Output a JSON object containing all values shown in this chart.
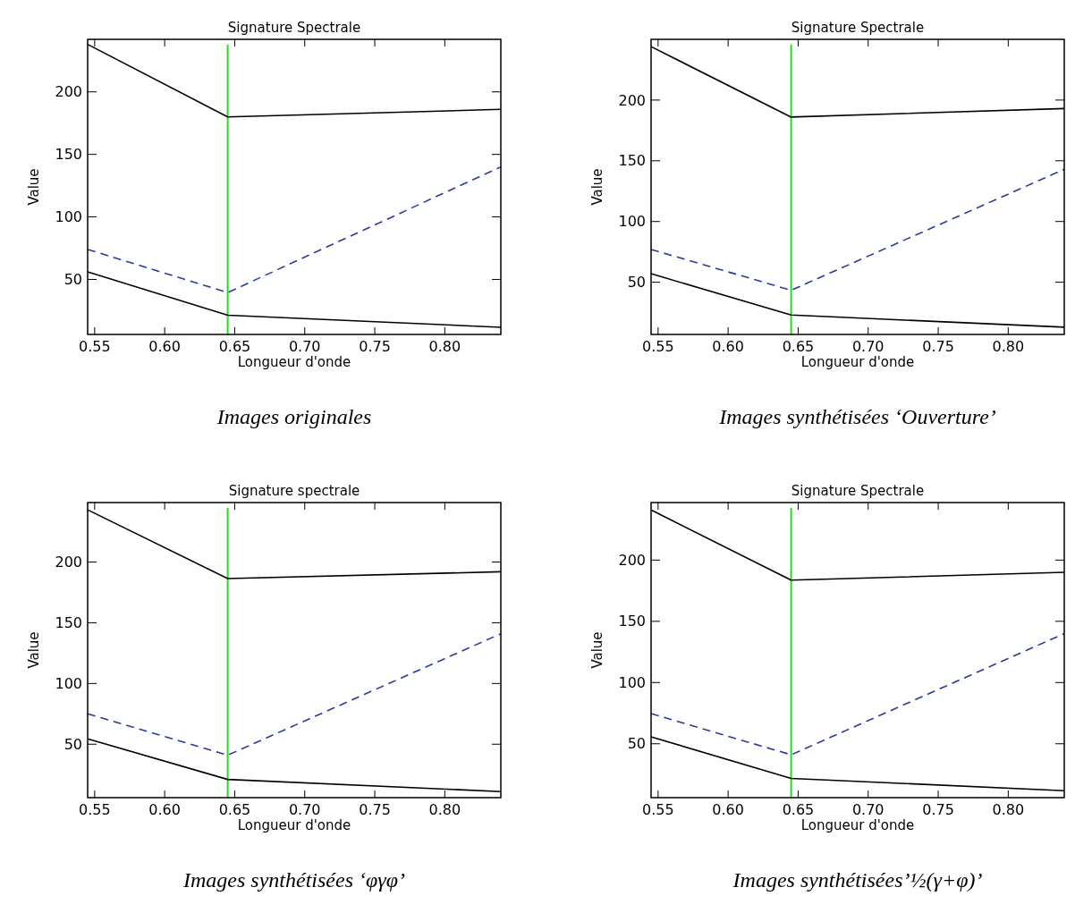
{
  "chart_data": [
    {
      "type": "line",
      "title": "Signature Spectrale",
      "xlabel": "Longueur d'onde",
      "ylabel": "Value",
      "annotations": [
        "Images originales"
      ],
      "x": [
        0.545,
        0.645,
        0.84
      ],
      "xlim": [
        0.545,
        0.84
      ],
      "xticks": [
        {
          "value": 0.55,
          "label": "0.55"
        },
        {
          "value": 0.6,
          "label": "0.60"
        },
        {
          "value": 0.65,
          "label": "0.65"
        },
        {
          "value": 0.7,
          "label": "0.70"
        },
        {
          "value": 0.75,
          "label": "0.75"
        },
        {
          "value": 0.8,
          "label": "0.80"
        }
      ],
      "ylim": [
        6,
        242
      ],
      "yticks": [
        50,
        100,
        150,
        200
      ],
      "marker": "none",
      "series": [
        {
          "color": "#000000",
          "line_style": "solid",
          "values": [
            238,
            180,
            186
          ]
        },
        {
          "color": "#2a3a9a",
          "line_style": "dashed",
          "values": [
            74,
            39.5,
            140
          ]
        },
        {
          "color": "#000000",
          "line_style": "solid",
          "values": [
            56,
            21.4,
            11.7
          ]
        }
      ],
      "ref_lines": [
        {
          "axis": "x",
          "value": 0.645,
          "color": "#22dd22"
        }
      ]
    },
    {
      "type": "line",
      "title": "Signature Spectrale",
      "xlabel": "Longueur d'onde",
      "ylabel": "Value",
      "annotations": [
        "Images synthétisées ‘Ouverture’"
      ],
      "x": [
        0.545,
        0.645,
        0.84
      ],
      "xlim": [
        0.545,
        0.84
      ],
      "xticks": [
        {
          "value": 0.55,
          "label": "0.55"
        },
        {
          "value": 0.6,
          "label": "0.60"
        },
        {
          "value": 0.65,
          "label": "0.65"
        },
        {
          "value": 0.7,
          "label": "0.70"
        },
        {
          "value": 0.75,
          "label": "0.75"
        },
        {
          "value": 0.8,
          "label": "0.80"
        }
      ],
      "ylim": [
        7,
        250
      ],
      "yticks": [
        50,
        100,
        150,
        200
      ],
      "marker": "none",
      "series": [
        {
          "color": "#000000",
          "line_style": "solid",
          "values": [
            244,
            186,
            193
          ]
        },
        {
          "color": "#2a3a9a",
          "line_style": "dashed",
          "values": [
            77,
            43.4,
            143
          ]
        },
        {
          "color": "#000000",
          "line_style": "solid",
          "values": [
            57,
            23,
            13
          ]
        }
      ],
      "ref_lines": [
        {
          "axis": "x",
          "value": 0.645,
          "color": "#22dd22"
        }
      ]
    },
    {
      "type": "line",
      "title": "Signature spectrale",
      "xlabel": "Longueur d'onde",
      "ylabel": "Value",
      "annotations": [
        "Images synthétisées ‘φγφ’"
      ],
      "x": [
        0.545,
        0.645,
        0.84
      ],
      "xlim": [
        0.545,
        0.84
      ],
      "xticks": [
        {
          "value": 0.55,
          "label": "0.55"
        },
        {
          "value": 0.6,
          "label": "0.60"
        },
        {
          "value": 0.65,
          "label": "0.65"
        },
        {
          "value": 0.7,
          "label": "0.70"
        },
        {
          "value": 0.75,
          "label": "0.75"
        },
        {
          "value": 0.8,
          "label": "0.80"
        }
      ],
      "ylim": [
        6,
        249
      ],
      "yticks": [
        50,
        100,
        150,
        200
      ],
      "marker": "none",
      "series": [
        {
          "color": "#000000",
          "line_style": "solid",
          "values": [
            243,
            186.4,
            192
          ]
        },
        {
          "color": "#2a3a9a",
          "line_style": "dashed",
          "values": [
            75,
            41,
            141
          ]
        },
        {
          "color": "#000000",
          "line_style": "solid",
          "values": [
            54.4,
            21,
            11
          ]
        }
      ],
      "ref_lines": [
        {
          "axis": "x",
          "value": 0.645,
          "color": "#22dd22"
        }
      ]
    },
    {
      "type": "line",
      "title": "Signature Spectrale",
      "xlabel": "Longueur d'onde",
      "ylabel": "Value",
      "annotations": [
        "Images synthétisées’½(γ+φ)’"
      ],
      "x": [
        0.545,
        0.645,
        0.84
      ],
      "xlim": [
        0.545,
        0.84
      ],
      "xticks": [
        {
          "value": 0.55,
          "label": "0.55"
        },
        {
          "value": 0.6,
          "label": "0.60"
        },
        {
          "value": 0.65,
          "label": "0.65"
        },
        {
          "value": 0.7,
          "label": "0.70"
        },
        {
          "value": 0.75,
          "label": "0.75"
        },
        {
          "value": 0.8,
          "label": "0.80"
        }
      ],
      "ylim": [
        6,
        247
      ],
      "yticks": [
        50,
        100,
        150,
        200
      ],
      "marker": "none",
      "series": [
        {
          "color": "#000000",
          "line_style": "solid",
          "values": [
            241,
            183.6,
            190
          ]
        },
        {
          "color": "#2a3a9a",
          "line_style": "dashed",
          "values": [
            74.6,
            41,
            140
          ]
        },
        {
          "color": "#000000",
          "line_style": "solid",
          "values": [
            55.7,
            21.7,
            11.7
          ]
        }
      ],
      "ref_lines": [
        {
          "axis": "x",
          "value": 0.645,
          "color": "#22dd22"
        }
      ]
    }
  ]
}
